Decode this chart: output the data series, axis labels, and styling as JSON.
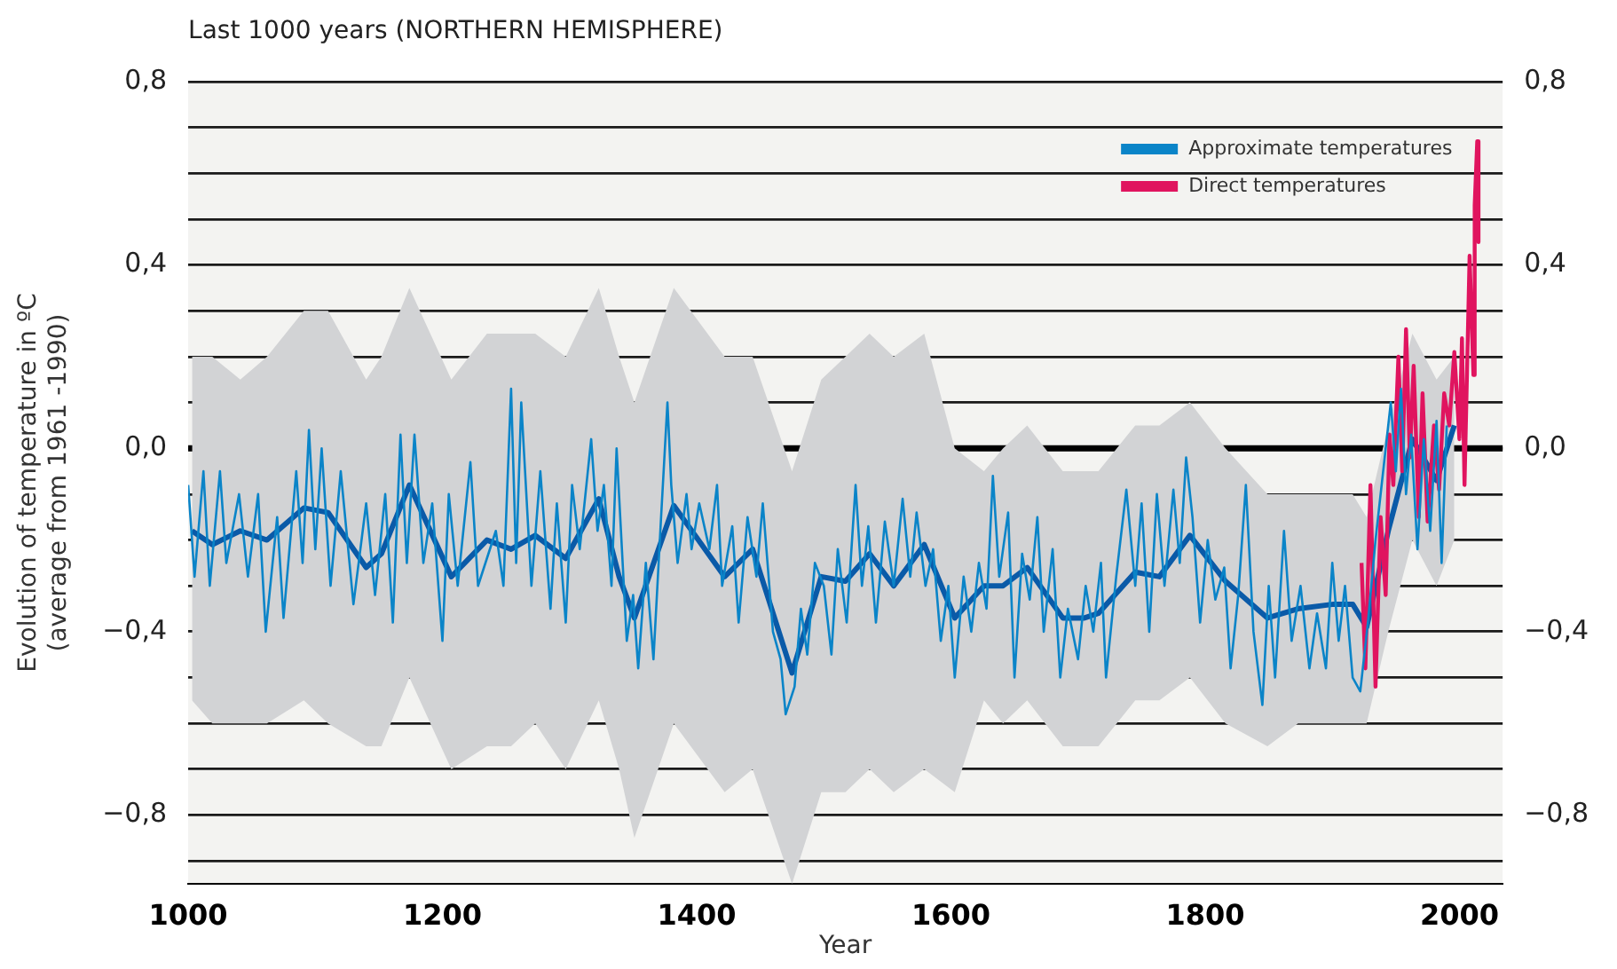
{
  "chart_data": {
    "type": "line",
    "title": "Last 1000 years (NORTHERN HEMISPHERE)",
    "xlabel": "Year",
    "ylabel": "Evolution of temperature in ºC\n(average from 1961 -1990)",
    "xlim": [
      1000,
      2034
    ],
    "xticks": [
      1000,
      1200,
      1400,
      1600,
      1800,
      2000
    ],
    "ylim": [
      -0.95,
      0.8
    ],
    "yticks": [
      {
        "value": -0.9,
        "label": null
      },
      {
        "value": -0.8,
        "label": "−0,8"
      },
      {
        "value": -0.7,
        "label": null
      },
      {
        "value": -0.6,
        "label": null
      },
      {
        "value": -0.5,
        "label": null
      },
      {
        "value": -0.4,
        "label": "−0,4"
      },
      {
        "value": -0.3,
        "label": null
      },
      {
        "value": -0.2,
        "label": null
      },
      {
        "value": -0.1,
        "label": null
      },
      {
        "value": 0,
        "label": "0,0"
      },
      {
        "value": 0.1,
        "label": null
      },
      {
        "value": 0.2,
        "label": null
      },
      {
        "value": 0.3,
        "label": null
      },
      {
        "value": 0.4,
        "label": "0,4"
      },
      {
        "value": 0.5,
        "label": null
      },
      {
        "value": 0.6,
        "label": null
      },
      {
        "value": 0.7,
        "label": null
      },
      {
        "value": 0.8,
        "label": "0,8"
      }
    ],
    "y2lim": [
      -0.95,
      0.8
    ],
    "y2ticks": [
      {
        "value": -0.9,
        "label": null
      },
      {
        "value": -0.8,
        "label": "−0,8"
      },
      {
        "value": -0.7,
        "label": null
      },
      {
        "value": -0.6,
        "label": null
      },
      {
        "value": -0.5,
        "label": null
      },
      {
        "value": -0.4,
        "label": "−0,4"
      },
      {
        "value": -0.3,
        "label": null
      },
      {
        "value": -0.2,
        "label": null
      },
      {
        "value": -0.1,
        "label": null
      },
      {
        "value": 0,
        "label": "0,0"
      },
      {
        "value": 0.1,
        "label": null
      },
      {
        "value": 0.2,
        "label": null
      },
      {
        "value": 0.3,
        "label": null
      },
      {
        "value": 0.4,
        "label": "0,4"
      },
      {
        "value": 0.5,
        "label": null
      },
      {
        "value": 0.6,
        "label": null
      },
      {
        "value": 0.7,
        "label": null
      },
      {
        "value": 0.8,
        "label": "0,8"
      }
    ],
    "grid": "y",
    "legend": "top right",
    "ref_lines": [
      {
        "axis": "y",
        "value": 0,
        "color": "#000000"
      }
    ],
    "series": [
      {
        "name": "Approximate temperatures",
        "color": "#0a84c8",
        "x": [
          1000,
          1005,
          1012,
          1017,
          1025,
          1030,
          1040,
          1047,
          1055,
          1061,
          1070,
          1075,
          1085,
          1090,
          1095,
          1100,
          1105,
          1112,
          1120,
          1130,
          1140,
          1147,
          1155,
          1161,
          1167,
          1172,
          1178,
          1185,
          1192,
          1200,
          1205,
          1212,
          1222,
          1228,
          1242,
          1248,
          1254,
          1258,
          1262,
          1270,
          1277,
          1285,
          1290,
          1297,
          1302,
          1308,
          1317,
          1322,
          1327,
          1333,
          1337,
          1345,
          1350,
          1354,
          1360,
          1366,
          1372,
          1377,
          1380,
          1385,
          1392,
          1396,
          1402,
          1410,
          1416,
          1420,
          1428,
          1433,
          1440,
          1447,
          1452,
          1460,
          1466,
          1470,
          1477,
          1482,
          1487,
          1493,
          1500,
          1506,
          1511,
          1518,
          1525,
          1530,
          1535,
          1541,
          1548,
          1555,
          1562,
          1568,
          1573,
          1580,
          1586,
          1592,
          1598,
          1603,
          1610,
          1616,
          1622,
          1628,
          1633,
          1638,
          1645,
          1650,
          1656,
          1662,
          1668,
          1673,
          1680,
          1686,
          1692,
          1700,
          1706,
          1712,
          1718,
          1722,
          1730,
          1738,
          1745,
          1750,
          1756,
          1762,
          1768,
          1775,
          1780,
          1785,
          1790,
          1796,
          1802,
          1808,
          1815,
          1820,
          1826,
          1832,
          1838,
          1845,
          1850,
          1855,
          1862,
          1868,
          1875,
          1882,
          1888,
          1895,
          1900,
          1905,
          1910,
          1916,
          1922,
          1928,
          1934,
          1940,
          1946,
          1950,
          1954,
          1958,
          1962,
          1967,
          1972,
          1977,
          1982,
          1986,
          1990
        ],
        "values": [
          -0.08,
          -0.28,
          -0.05,
          -0.3,
          -0.05,
          -0.25,
          -0.1,
          -0.28,
          -0.1,
          -0.4,
          -0.15,
          -0.37,
          -0.05,
          -0.25,
          0.04,
          -0.22,
          0,
          -0.3,
          -0.05,
          -0.34,
          -0.12,
          -0.32,
          -0.1,
          -0.38,
          0.03,
          -0.25,
          0.03,
          -0.25,
          -0.12,
          -0.42,
          -0.1,
          -0.3,
          -0.03,
          -0.3,
          -0.18,
          -0.3,
          0.13,
          -0.25,
          0.1,
          -0.3,
          -0.05,
          -0.35,
          -0.12,
          -0.38,
          -0.08,
          -0.22,
          0.02,
          -0.18,
          -0.08,
          -0.3,
          0,
          -0.42,
          -0.32,
          -0.48,
          -0.25,
          -0.46,
          -0.15,
          0.1,
          -0.08,
          -0.25,
          -0.1,
          -0.22,
          -0.12,
          -0.22,
          -0.08,
          -0.3,
          -0.17,
          -0.38,
          -0.15,
          -0.28,
          -0.12,
          -0.4,
          -0.46,
          -0.58,
          -0.52,
          -0.35,
          -0.45,
          -0.25,
          -0.3,
          -0.45,
          -0.22,
          -0.38,
          -0.08,
          -0.3,
          -0.17,
          -0.38,
          -0.16,
          -0.3,
          -0.11,
          -0.28,
          -0.14,
          -0.3,
          -0.22,
          -0.42,
          -0.3,
          -0.5,
          -0.28,
          -0.4,
          -0.25,
          -0.35,
          -0.06,
          -0.28,
          -0.14,
          -0.5,
          -0.23,
          -0.33,
          -0.15,
          -0.4,
          -0.22,
          -0.5,
          -0.35,
          -0.46,
          -0.3,
          -0.4,
          -0.25,
          -0.5,
          -0.28,
          -0.09,
          -0.3,
          -0.12,
          -0.4,
          -0.1,
          -0.3,
          -0.09,
          -0.25,
          -0.02,
          -0.15,
          -0.38,
          -0.2,
          -0.33,
          -0.26,
          -0.48,
          -0.32,
          -0.08,
          -0.4,
          -0.56,
          -0.3,
          -0.5,
          -0.18,
          -0.42,
          -0.3,
          -0.48,
          -0.36,
          -0.48,
          -0.25,
          -0.42,
          -0.3,
          -0.5,
          -0.53,
          -0.38,
          -0.2,
          -0.05,
          0.1,
          -0.05,
          0.13,
          -0.1,
          0.03,
          -0.22,
          0.02,
          -0.18,
          0.06,
          -0.25,
          0.05
        ]
      },
      {
        "name": "Direct temperatures",
        "color": "#e0145f",
        "x": [
          1923,
          1926,
          1930,
          1934,
          1938,
          1942,
          1945,
          1948,
          1952,
          1955,
          1958,
          1961,
          1964,
          1968,
          1971,
          1975,
          1980,
          1984,
          1988,
          1992,
          1996,
          2000,
          2002,
          2004,
          2008,
          2011,
          2012,
          2014,
          2015
        ],
        "values": [
          -0.25,
          -0.48,
          -0.08,
          -0.52,
          -0.15,
          -0.32,
          0.03,
          -0.08,
          0.2,
          -0.05,
          0.26,
          -0.02,
          0.18,
          -0.15,
          0.12,
          -0.16,
          0.05,
          -0.09,
          0.12,
          0.05,
          0.21,
          0.02,
          0.24,
          -0.08,
          0.42,
          0.16,
          0.53,
          0.67,
          0.45
        ]
      },
      {
        "color": "#0a5aa8",
        "x": [
          1003,
          1019,
          1041,
          1062,
          1091,
          1110,
          1140,
          1152,
          1174,
          1207,
          1235,
          1254,
          1273,
          1297,
          1323,
          1339,
          1351,
          1382,
          1422,
          1444,
          1475,
          1498,
          1517,
          1536,
          1555,
          1579,
          1603,
          1626,
          1641,
          1660,
          1688,
          1705,
          1716,
          1745,
          1764,
          1788,
          1816,
          1849,
          1873,
          1901,
          1916,
          1927,
          1944,
          1963,
          1982,
          1996
        ],
        "values": [
          -0.18,
          -0.21,
          -0.18,
          -0.2,
          -0.13,
          -0.14,
          -0.26,
          -0.23,
          -0.08,
          -0.28,
          -0.2,
          -0.22,
          -0.19,
          -0.24,
          -0.11,
          -0.28,
          -0.37,
          -0.125,
          -0.28,
          -0.22,
          -0.49,
          -0.28,
          -0.29,
          -0.23,
          -0.3,
          -0.21,
          -0.37,
          -0.3,
          -0.3,
          -0.26,
          -0.37,
          -0.37,
          -0.36,
          -0.27,
          -0.28,
          -0.19,
          -0.29,
          -0.37,
          -0.35,
          -0.34,
          -0.34,
          -0.39,
          -0.18,
          0.02,
          -0.07,
          0.05
        ],
        "upper": [
          0.2,
          0.2,
          0.15,
          0.2,
          0.3,
          0.3,
          0.15,
          0.2,
          0.35,
          0.15,
          0.25,
          0.25,
          0.25,
          0.2,
          0.35,
          0.2,
          0.1,
          0.35,
          0.2,
          0.2,
          -0.05,
          0.15,
          0.2,
          0.25,
          0.2,
          0.25,
          0,
          -0.05,
          0,
          0.05,
          -0.05,
          -0.05,
          -0.05,
          0.05,
          0.05,
          0.1,
          0,
          -0.1,
          -0.1,
          -0.1,
          -0.1,
          -0.15,
          0.05,
          0.25,
          0.15,
          0.2
        ],
        "lower": [
          -0.55,
          -0.6,
          -0.6,
          -0.6,
          -0.55,
          -0.6,
          -0.65,
          -0.65,
          -0.5,
          -0.7,
          -0.65,
          -0.65,
          -0.6,
          -0.7,
          -0.55,
          -0.7,
          -0.85,
          -0.6,
          -0.75,
          -0.7,
          -0.95,
          -0.75,
          -0.75,
          -0.7,
          -0.75,
          -0.7,
          -0.75,
          -0.55,
          -0.6,
          -0.55,
          -0.65,
          -0.65,
          -0.65,
          -0.55,
          -0.55,
          -0.5,
          -0.6,
          -0.65,
          -0.6,
          -0.6,
          -0.6,
          -0.6,
          -0.4,
          -0.2,
          -0.3,
          -0.2
        ]
      }
    ]
  }
}
